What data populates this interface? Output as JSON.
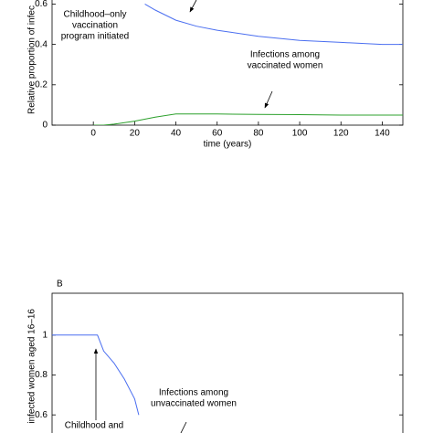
{
  "chart_data": [
    {
      "type": "line",
      "y_label": "Relative proportion of infec",
      "x_label": "time (years)",
      "xlim": [
        -20,
        150
      ],
      "xticks": [
        0,
        20,
        40,
        60,
        80,
        100,
        120,
        140
      ],
      "ylim": [
        0,
        0.62
      ],
      "yticks": [
        0,
        0.2,
        0.4,
        0.6
      ],
      "series": [
        {
          "color": "#4a6ef0",
          "x": [
            25,
            30,
            40,
            50,
            60,
            80,
            100,
            120,
            140,
            150
          ],
          "values": [
            0.6,
            0.57,
            0.52,
            0.49,
            0.47,
            0.44,
            0.42,
            0.41,
            0.4,
            0.4
          ]
        },
        {
          "color": "#2ca02c",
          "x": [
            0,
            5,
            10,
            20,
            30,
            40,
            60,
            80,
            100,
            120,
            150
          ],
          "values": [
            0,
            0,
            0.005,
            0.02,
            0.04,
            0.055,
            0.055,
            0.053,
            0.052,
            0.05,
            0.05
          ]
        }
      ],
      "annotations": [
        {
          "lines": [
            "Childhood–only",
            "vaccination",
            "program initiated"
          ]
        },
        {
          "lines": [
            "Infections among",
            "vaccinated women"
          ]
        }
      ]
    },
    {
      "type": "line",
      "panel_label": "B",
      "y_label": "infected women aged 16–16",
      "xlim": [
        -20,
        150
      ],
      "ylim": [
        0.5,
        1.21
      ],
      "yticks": [
        0.6,
        0.8,
        1
      ],
      "series": [
        {
          "color": "#4a6ef0",
          "x": [
            -20,
            0,
            2,
            5,
            10,
            15,
            20,
            22
          ],
          "values": [
            1,
            1,
            1,
            0.92,
            0.86,
            0.78,
            0.68,
            0.6
          ]
        }
      ],
      "annotations": [
        {
          "lines": [
            "Infections among",
            "unvaccinated women"
          ]
        },
        {
          "lines": [
            "Childhood and"
          ]
        }
      ]
    }
  ]
}
